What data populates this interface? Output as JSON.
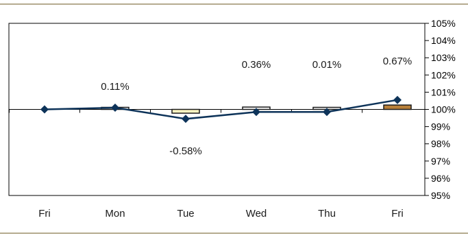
{
  "colors": {
    "rule": "#b5ab8f",
    "plot_border": "#000000",
    "line": "#0d3359",
    "marker": "#0d3359",
    "box_edge": "#1a1a1a",
    "bar_default": "#ffffff",
    "bar_highlight_neg": "#fff7c2",
    "bar_highlight_last": "#b8803a"
  },
  "chart_data": {
    "type": "bar",
    "categories": [
      "Fri",
      "Mon",
      "Tue",
      "Wed",
      "Thu",
      "Fri"
    ],
    "series": [
      {
        "kind": "bar",
        "values": [
          0.0,
          0.11,
          -0.58,
          0.36,
          0.01,
          0.67
        ]
      },
      {
        "kind": "line",
        "values": [
          100.0,
          100.1,
          99.45,
          99.85,
          99.85,
          100.55
        ]
      }
    ],
    "data_labels": [
      "",
      "0.11%",
      "-0.58%",
      "0.36%",
      "0.01%",
      "0.67%"
    ],
    "yaxis": {
      "side": "right",
      "ylim": [
        95,
        105
      ],
      "ticks": [
        95,
        96,
        97,
        98,
        99,
        100,
        101,
        102,
        103,
        104,
        105
      ],
      "tick_labels": [
        "95%",
        "96%",
        "97%",
        "98%",
        "99%",
        "100%",
        "101%",
        "102%",
        "103%",
        "104%",
        "105%"
      ]
    },
    "baseline": 100,
    "bar_colors": [
      "#ffffff",
      "#ffffff",
      "#fff7c2",
      "#ffffff",
      "#ffffff",
      "#b8803a"
    ],
    "grid": false,
    "legend": "none"
  }
}
